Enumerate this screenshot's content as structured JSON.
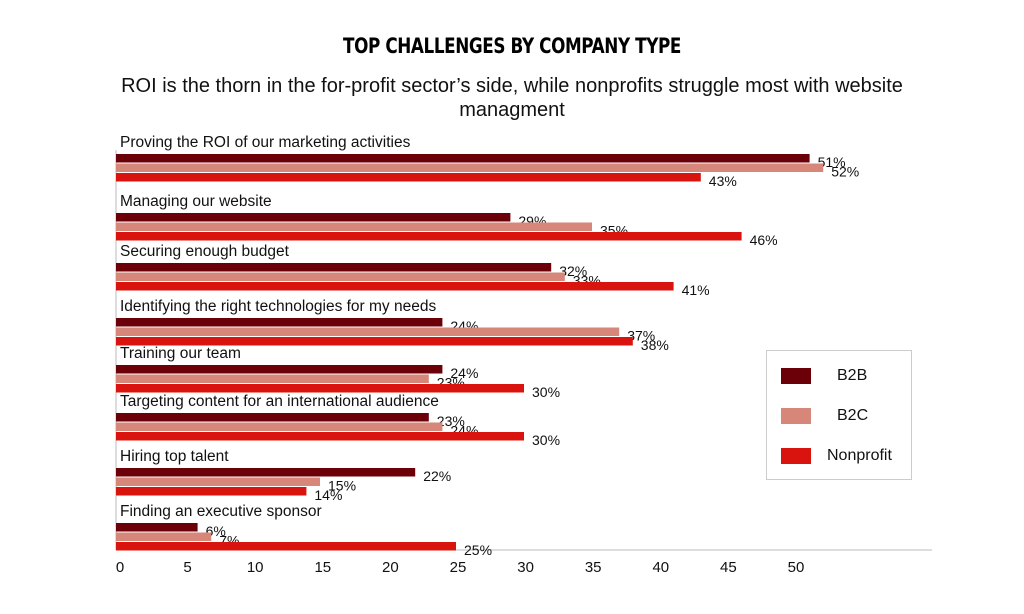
{
  "chart_data": {
    "type": "bar",
    "orientation": "horizontal",
    "title": "TOP CHALLENGES BY COMPANY TYPE",
    "subtitle": "ROI is the thorn in the for-profit sector’s side, while nonprofits struggle most with website managment",
    "categories": [
      "Proving the ROI of our marketing activities",
      "Managing our website",
      "Securing enough budget",
      "Identifying the right technologies for my needs",
      "Training our team",
      "Targeting content for an international audience",
      "Hiring top talent",
      "Finding an executive sponsor"
    ],
    "series": [
      {
        "name": "B2B",
        "color": "#6b0008",
        "values": [
          51,
          29,
          32,
          24,
          24,
          23,
          22,
          6
        ]
      },
      {
        "name": "B2C",
        "color": "#d6877a",
        "values": [
          52,
          35,
          33,
          37,
          23,
          24,
          15,
          7
        ]
      },
      {
        "name": "Nonprofit",
        "color": "#d9140e",
        "values": [
          43,
          46,
          41,
          38,
          30,
          30,
          14,
          25
        ]
      }
    ],
    "value_suffix": "%",
    "xlim": [
      0,
      55
    ],
    "xticks": [
      0,
      5,
      10,
      15,
      20,
      25,
      30,
      35,
      40,
      45,
      50
    ],
    "grid": false,
    "legend": "right"
  }
}
